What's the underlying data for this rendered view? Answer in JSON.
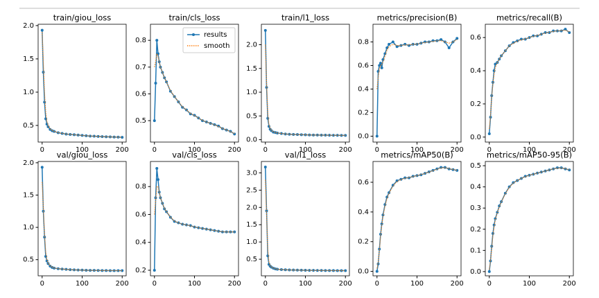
{
  "chart_data": [
    {
      "type": "line",
      "title": "train/giou_loss",
      "x": [
        0,
        3,
        6,
        9,
        12,
        15,
        20,
        25,
        30,
        40,
        50,
        60,
        70,
        80,
        90,
        100,
        110,
        120,
        130,
        140,
        150,
        160,
        170,
        180,
        190,
        200
      ],
      "series": [
        {
          "color": "#1f77b4",
          "values": [
            1.93,
            1.3,
            0.85,
            0.6,
            0.52,
            0.48,
            0.44,
            0.42,
            0.41,
            0.39,
            0.38,
            0.37,
            0.365,
            0.36,
            0.355,
            0.35,
            0.345,
            0.34,
            0.338,
            0.335,
            0.332,
            0.33,
            0.328,
            0.326,
            0.324,
            0.322
          ]
        },
        {
          "color": "#ff7f0e",
          "values": [
            1.9,
            1.45,
            1.0,
            0.7,
            0.56,
            0.5,
            0.45,
            0.425,
            0.412,
            0.392,
            0.381,
            0.371,
            0.365,
            0.36,
            0.355,
            0.35,
            0.345,
            0.341,
            0.338,
            0.335,
            0.332,
            0.33,
            0.328,
            0.326,
            0.324,
            0.323
          ]
        }
      ],
      "xlim": [
        -10,
        210
      ],
      "xticks": [
        0,
        100,
        200
      ],
      "ylim": [
        0.25,
        2.02
      ],
      "yticks": [
        0.5,
        {
          "value": 1,
          "label": "1.0"
        },
        1.5,
        {
          "value": 2,
          "label": "2.0"
        }
      ]
    },
    {
      "type": "line",
      "title": "train/cls_loss",
      "x": [
        0,
        3,
        6,
        9,
        12,
        15,
        20,
        25,
        30,
        40,
        50,
        60,
        70,
        80,
        90,
        100,
        110,
        120,
        130,
        140,
        150,
        160,
        170,
        180,
        190,
        200
      ],
      "series": [
        {
          "name": "results",
          "color": "#1f77b4",
          "values": [
            0.5,
            0.64,
            0.8,
            0.75,
            0.72,
            0.7,
            0.68,
            0.66,
            0.645,
            0.61,
            0.59,
            0.57,
            0.55,
            0.54,
            0.525,
            0.52,
            0.51,
            0.5,
            0.495,
            0.49,
            0.485,
            0.48,
            0.47,
            0.465,
            0.46,
            0.45
          ]
        },
        {
          "name": "smooth",
          "color": "#ff7f0e",
          "values": [
            0.7,
            0.72,
            0.75,
            0.74,
            0.72,
            0.7,
            0.68,
            0.66,
            0.645,
            0.612,
            0.59,
            0.57,
            0.552,
            0.54,
            0.527,
            0.519,
            0.51,
            0.501,
            0.495,
            0.49,
            0.484,
            0.478,
            0.471,
            0.465,
            0.459,
            0.452
          ]
        }
      ],
      "legend": "upper right",
      "xlim": [
        -10,
        210
      ],
      "xticks": [
        0,
        100,
        200
      ],
      "ylim": [
        0.42,
        0.86
      ],
      "yticks": [
        0.5,
        0.6,
        0.7,
        0.8
      ]
    },
    {
      "type": "line",
      "title": "train/l1_loss",
      "x": [
        0,
        3,
        6,
        9,
        12,
        15,
        20,
        25,
        30,
        40,
        50,
        60,
        70,
        80,
        90,
        100,
        110,
        120,
        130,
        140,
        150,
        160,
        170,
        180,
        190,
        200
      ],
      "series": [
        {
          "color": "#1f77b4",
          "values": [
            2.3,
            1.1,
            0.45,
            0.28,
            0.22,
            0.19,
            0.16,
            0.15,
            0.14,
            0.13,
            0.12,
            0.115,
            0.11,
            0.108,
            0.105,
            0.103,
            0.1,
            0.098,
            0.097,
            0.096,
            0.095,
            0.094,
            0.093,
            0.092,
            0.091,
            0.09
          ]
        },
        {
          "color": "#ff7f0e",
          "values": [
            2.0,
            1.2,
            0.55,
            0.32,
            0.24,
            0.2,
            0.165,
            0.152,
            0.142,
            0.13,
            0.121,
            0.115,
            0.11,
            0.108,
            0.105,
            0.103,
            0.1,
            0.098,
            0.097,
            0.096,
            0.095,
            0.094,
            0.093,
            0.092,
            0.091,
            0.09
          ]
        }
      ],
      "xlim": [
        -10,
        210
      ],
      "xticks": [
        0,
        100,
        200
      ],
      "ylim": [
        -0.05,
        2.43
      ],
      "yticks": [
        {
          "value": 0,
          "label": "0.0"
        },
        0.5,
        {
          "value": 1,
          "label": "1.0"
        },
        1.5,
        {
          "value": 2,
          "label": "2.0"
        }
      ]
    },
    {
      "type": "line",
      "title": "metrics/precision(B)",
      "x": [
        0,
        3,
        6,
        9,
        12,
        15,
        20,
        25,
        30,
        40,
        50,
        60,
        70,
        80,
        90,
        100,
        110,
        120,
        130,
        140,
        150,
        160,
        170,
        180,
        190,
        200
      ],
      "series": [
        {
          "color": "#1f77b4",
          "values": [
            0,
            0.55,
            0.6,
            0.62,
            0.58,
            0.65,
            0.7,
            0.75,
            0.78,
            0.8,
            0.76,
            0.77,
            0.78,
            0.77,
            0.78,
            0.78,
            0.79,
            0.8,
            0.8,
            0.81,
            0.81,
            0.82,
            0.8,
            0.75,
            0.8,
            0.83
          ]
        },
        {
          "color": "#ff7f0e",
          "values": [
            0.4,
            0.5,
            0.57,
            0.6,
            0.61,
            0.63,
            0.68,
            0.73,
            0.76,
            0.78,
            0.77,
            0.77,
            0.775,
            0.775,
            0.78,
            0.782,
            0.79,
            0.795,
            0.8,
            0.805,
            0.81,
            0.81,
            0.8,
            0.79,
            0.8,
            0.82
          ]
        }
      ],
      "xlim": [
        -10,
        210
      ],
      "xticks": [
        0,
        100,
        200
      ],
      "ylim": [
        -0.05,
        0.95
      ],
      "yticks": [
        {
          "value": 0,
          "label": "0.0"
        },
        0.2,
        0.4,
        0.6,
        0.8
      ]
    },
    {
      "type": "line",
      "title": "metrics/recall(B)",
      "x": [
        0,
        3,
        6,
        9,
        12,
        15,
        20,
        25,
        30,
        40,
        50,
        60,
        70,
        80,
        90,
        100,
        110,
        120,
        130,
        140,
        150,
        160,
        170,
        180,
        190,
        200
      ],
      "series": [
        {
          "color": "#1f77b4",
          "values": [
            0.02,
            0.12,
            0.25,
            0.33,
            0.4,
            0.44,
            0.45,
            0.47,
            0.49,
            0.52,
            0.55,
            0.57,
            0.58,
            0.59,
            0.59,
            0.6,
            0.61,
            0.61,
            0.62,
            0.63,
            0.63,
            0.64,
            0.64,
            0.64,
            0.65,
            0.63
          ]
        },
        {
          "color": "#ff7f0e",
          "values": [
            0.05,
            0.13,
            0.24,
            0.32,
            0.38,
            0.42,
            0.45,
            0.47,
            0.49,
            0.52,
            0.55,
            0.565,
            0.578,
            0.586,
            0.592,
            0.6,
            0.607,
            0.613,
            0.62,
            0.627,
            0.632,
            0.637,
            0.64,
            0.642,
            0.643,
            0.635
          ]
        }
      ],
      "xlim": [
        -10,
        210
      ],
      "xticks": [
        0,
        100,
        200
      ],
      "ylim": [
        -0.03,
        0.68
      ],
      "yticks": [
        {
          "value": 0,
          "label": "0.0"
        },
        0.2,
        0.4,
        0.6
      ]
    },
    {
      "type": "line",
      "title": "val/giou_loss",
      "x": [
        0,
        3,
        6,
        9,
        12,
        15,
        20,
        25,
        30,
        40,
        50,
        60,
        70,
        80,
        90,
        100,
        110,
        120,
        130,
        140,
        150,
        160,
        170,
        180,
        190,
        200
      ],
      "series": [
        {
          "color": "#1f77b4",
          "values": [
            1.93,
            1.25,
            0.85,
            0.55,
            0.48,
            0.44,
            0.4,
            0.38,
            0.37,
            0.36,
            0.355,
            0.35,
            0.345,
            0.342,
            0.34,
            0.338,
            0.336,
            0.335,
            0.334,
            0.333,
            0.332,
            0.332,
            0.331,
            0.331,
            0.33,
            0.33
          ]
        },
        {
          "color": "#ff7f0e",
          "values": [
            1.7,
            1.3,
            0.9,
            0.62,
            0.5,
            0.45,
            0.41,
            0.385,
            0.372,
            0.361,
            0.355,
            0.35,
            0.345,
            0.342,
            0.34,
            0.338,
            0.336,
            0.335,
            0.334,
            0.333,
            0.332,
            0.332,
            0.331,
            0.331,
            0.33,
            0.33
          ]
        }
      ],
      "xlim": [
        -10,
        210
      ],
      "xticks": [
        0,
        100,
        200
      ],
      "ylim": [
        0.25,
        2.02
      ],
      "yticks": [
        0.5,
        {
          "value": 1,
          "label": "1.0"
        },
        1.5,
        {
          "value": 2,
          "label": "2.0"
        }
      ]
    },
    {
      "type": "line",
      "title": "val/cls_loss",
      "x": [
        0,
        3,
        6,
        9,
        12,
        15,
        20,
        25,
        30,
        40,
        50,
        60,
        70,
        80,
        90,
        100,
        110,
        120,
        130,
        140,
        150,
        160,
        170,
        180,
        190,
        200
      ],
      "series": [
        {
          "color": "#1f77b4",
          "values": [
            0.2,
            0.72,
            0.93,
            0.85,
            0.76,
            0.72,
            0.68,
            0.64,
            0.62,
            0.58,
            0.55,
            0.54,
            0.53,
            0.525,
            0.52,
            0.51,
            0.505,
            0.5,
            0.495,
            0.49,
            0.485,
            0.48,
            0.475,
            0.475,
            0.475,
            0.475
          ]
        },
        {
          "color": "#ff7f0e",
          "values": [
            0.6,
            0.7,
            0.8,
            0.8,
            0.76,
            0.72,
            0.68,
            0.645,
            0.622,
            0.582,
            0.553,
            0.54,
            0.531,
            0.525,
            0.519,
            0.511,
            0.505,
            0.5,
            0.495,
            0.49,
            0.485,
            0.48,
            0.476,
            0.475,
            0.475,
            0.475
          ]
        }
      ],
      "xlim": [
        -10,
        210
      ],
      "xticks": [
        0,
        100,
        200
      ],
      "ylim": [
        0.16,
        0.98
      ],
      "yticks": [
        0.2,
        0.4,
        0.6,
        0.8
      ]
    },
    {
      "type": "line",
      "title": "val/l1_loss",
      "x": [
        0,
        3,
        6,
        9,
        12,
        15,
        20,
        25,
        30,
        40,
        50,
        60,
        70,
        80,
        90,
        100,
        110,
        120,
        130,
        140,
        150,
        160,
        170,
        180,
        190,
        200
      ],
      "series": [
        {
          "color": "#1f77b4",
          "values": [
            3.17,
            1.9,
            0.6,
            0.35,
            0.3,
            0.27,
            0.24,
            0.22,
            0.21,
            0.2,
            0.195,
            0.19,
            0.188,
            0.185,
            0.183,
            0.18,
            0.178,
            0.177,
            0.176,
            0.175,
            0.174,
            0.173,
            0.172,
            0.171,
            0.17,
            0.17
          ]
        },
        {
          "color": "#ff7f0e",
          "values": [
            2.8,
            1.8,
            0.8,
            0.42,
            0.32,
            0.28,
            0.245,
            0.225,
            0.212,
            0.201,
            0.195,
            0.19,
            0.188,
            0.185,
            0.183,
            0.18,
            0.178,
            0.177,
            0.176,
            0.175,
            0.174,
            0.173,
            0.172,
            0.171,
            0.17,
            0.17
          ]
        }
      ],
      "xlim": [
        -10,
        210
      ],
      "xticks": [
        0,
        100,
        200
      ],
      "ylim": [
        0.02,
        3.33
      ],
      "yticks": [
        0.5,
        {
          "value": 1,
          "label": "1.0"
        },
        1.5,
        {
          "value": 2,
          "label": "2.0"
        },
        2.5,
        {
          "value": 3,
          "label": "3.0"
        }
      ]
    },
    {
      "type": "line",
      "title": "metrics/mAP50(B)",
      "x": [
        0,
        3,
        6,
        9,
        12,
        15,
        20,
        25,
        30,
        40,
        50,
        60,
        70,
        80,
        90,
        100,
        110,
        120,
        130,
        140,
        150,
        160,
        170,
        180,
        190,
        200
      ],
      "series": [
        {
          "color": "#1f77b4",
          "values": [
            0,
            0.05,
            0.15,
            0.25,
            0.32,
            0.38,
            0.45,
            0.5,
            0.53,
            0.58,
            0.61,
            0.62,
            0.63,
            0.63,
            0.64,
            0.645,
            0.65,
            0.66,
            0.67,
            0.68,
            0.69,
            0.7,
            0.7,
            0.69,
            0.685,
            0.68
          ]
        },
        {
          "color": "#ff7f0e",
          "values": [
            0.02,
            0.06,
            0.14,
            0.24,
            0.31,
            0.37,
            0.44,
            0.49,
            0.525,
            0.575,
            0.605,
            0.618,
            0.627,
            0.632,
            0.638,
            0.645,
            0.652,
            0.66,
            0.669,
            0.678,
            0.688,
            0.696,
            0.698,
            0.692,
            0.686,
            0.681
          ]
        }
      ],
      "xlim": [
        -10,
        210
      ],
      "xticks": [
        0,
        100,
        200
      ],
      "ylim": [
        -0.03,
        0.74
      ],
      "yticks": [
        {
          "value": 0,
          "label": "0.0"
        },
        0.2,
        0.4,
        0.6
      ]
    },
    {
      "type": "line",
      "title": "metrics/mAP50-95(B)",
      "x": [
        0,
        3,
        6,
        9,
        12,
        15,
        20,
        25,
        30,
        40,
        50,
        60,
        70,
        80,
        90,
        100,
        110,
        120,
        130,
        140,
        150,
        160,
        170,
        180,
        190,
        200
      ],
      "series": [
        {
          "color": "#1f77b4",
          "values": [
            0,
            0.05,
            0.12,
            0.18,
            0.22,
            0.25,
            0.28,
            0.31,
            0.33,
            0.37,
            0.4,
            0.42,
            0.43,
            0.44,
            0.45,
            0.455,
            0.46,
            0.465,
            0.47,
            0.475,
            0.48,
            0.485,
            0.49,
            0.49,
            0.485,
            0.48
          ]
        },
        {
          "color": "#ff7f0e",
          "values": [
            0.01,
            0.05,
            0.11,
            0.17,
            0.21,
            0.245,
            0.277,
            0.305,
            0.328,
            0.368,
            0.398,
            0.418,
            0.43,
            0.44,
            0.448,
            0.455,
            0.46,
            0.465,
            0.47,
            0.475,
            0.48,
            0.485,
            0.488,
            0.489,
            0.486,
            0.481
          ]
        }
      ],
      "xlim": [
        -10,
        210
      ],
      "xticks": [
        0,
        100,
        200
      ],
      "ylim": [
        -0.02,
        0.52
      ],
      "yticks": [
        {
          "value": 0,
          "label": "0.0"
        },
        0.1,
        0.2,
        0.3,
        0.4,
        0.5
      ]
    }
  ]
}
